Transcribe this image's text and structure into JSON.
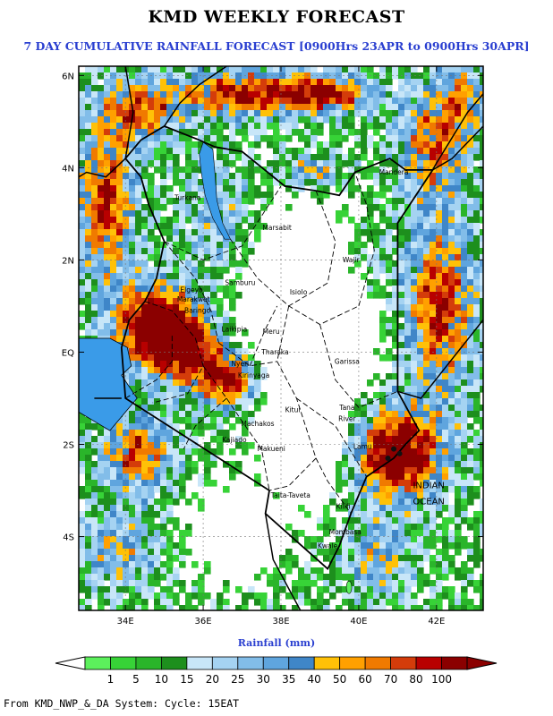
{
  "title": "KMD WEEKLY FORECAST",
  "subtitle": "7 DAY CUMULATIVE RAINFALL FORECAST [0900Hrs 23APR to 0900Hrs 30APR]",
  "colorbar_title": "Rainfall (mm)",
  "footer": "From KMD_NWP_&_DA System: Cycle: 15EAT",
  "axes": {
    "lon_range": [
      32.8,
      43.2
    ],
    "lat_range": [
      -5.6,
      6.2
    ],
    "lon_ticks": [
      {
        "v": 34,
        "label": "34E"
      },
      {
        "v": 36,
        "label": "36E"
      },
      {
        "v": 38,
        "label": "38E"
      },
      {
        "v": 40,
        "label": "40E"
      },
      {
        "v": 42,
        "label": "42E"
      }
    ],
    "lat_ticks": [
      {
        "v": 6,
        "label": "6N"
      },
      {
        "v": 4,
        "label": "4N"
      },
      {
        "v": 2,
        "label": "2N"
      },
      {
        "v": 0,
        "label": "EQ"
      },
      {
        "v": -2,
        "label": "2S"
      },
      {
        "v": -4,
        "label": "4S"
      }
    ]
  },
  "colors": {
    "lake": "#3a9be8",
    "border": "#000000",
    "levels": [
      "#5cf05c",
      "#37d337",
      "#2ab52a",
      "#1d8f1d",
      "#c8e6f8",
      "#a5d3f2",
      "#82bde9",
      "#5fa5de",
      "#3f86c8",
      "#ffc107",
      "#ffa000",
      "#f07a00",
      "#d43c0a",
      "#b80000",
      "#8b0000"
    ]
  },
  "colorbar": {
    "ticks": [
      "1",
      "5",
      "10",
      "15",
      "20",
      "25",
      "30",
      "35",
      "40",
      "50",
      "60",
      "70",
      "80",
      "100"
    ]
  },
  "places": [
    {
      "name": "Turkana",
      "lon": 35.6,
      "lat": 3.3
    },
    {
      "name": "Marsabit",
      "lon": 37.9,
      "lat": 2.65
    },
    {
      "name": "Mandera",
      "lon": 40.9,
      "lat": 3.85
    },
    {
      "name": "Wajir",
      "lon": 39.8,
      "lat": 1.95
    },
    {
      "name": "Samburu",
      "lon": 36.95,
      "lat": 1.45
    },
    {
      "name": "Isiolo",
      "lon": 38.45,
      "lat": 1.25
    },
    {
      "name": "Laikipia",
      "lon": 36.8,
      "lat": 0.45
    },
    {
      "name": "Meru",
      "lon": 37.75,
      "lat": 0.4
    },
    {
      "name": "Baringo",
      "lon": 35.85,
      "lat": 0.85
    },
    {
      "name": "Elgeyo",
      "lon": 35.7,
      "lat": 1.3
    },
    {
      "name": "Marakwet",
      "lon": 35.75,
      "lat": 1.1
    },
    {
      "name": "Tharaka",
      "lon": 37.85,
      "lat": -0.05
    },
    {
      "name": "Garissa",
      "lon": 39.7,
      "lat": -0.25
    },
    {
      "name": "Nyeri",
      "lon": 36.95,
      "lat": -0.3
    },
    {
      "name": "Kirinyaga",
      "lon": 37.3,
      "lat": -0.55
    },
    {
      "name": "Machakos",
      "lon": 37.4,
      "lat": -1.6
    },
    {
      "name": "Kitui",
      "lon": 38.3,
      "lat": -1.3
    },
    {
      "name": "Tana",
      "lon": 39.7,
      "lat": -1.25
    },
    {
      "name": "River",
      "lon": 39.7,
      "lat": -1.5
    },
    {
      "name": "Kajiado",
      "lon": 36.8,
      "lat": -1.95
    },
    {
      "name": "Makueni",
      "lon": 37.75,
      "lat": -2.15
    },
    {
      "name": "Lamu",
      "lon": 40.1,
      "lat": -2.1
    },
    {
      "name": "Taita-Taveta",
      "lon": 38.25,
      "lat": -3.15
    },
    {
      "name": "Kilifi",
      "lon": 39.6,
      "lat": -3.4
    },
    {
      "name": "Mombasa",
      "lon": 39.65,
      "lat": -3.95
    },
    {
      "name": "Kwale",
      "lon": 39.2,
      "lat": -4.25
    }
  ],
  "ocean_label": [
    "INDIAN",
    "OCEAN"
  ]
}
